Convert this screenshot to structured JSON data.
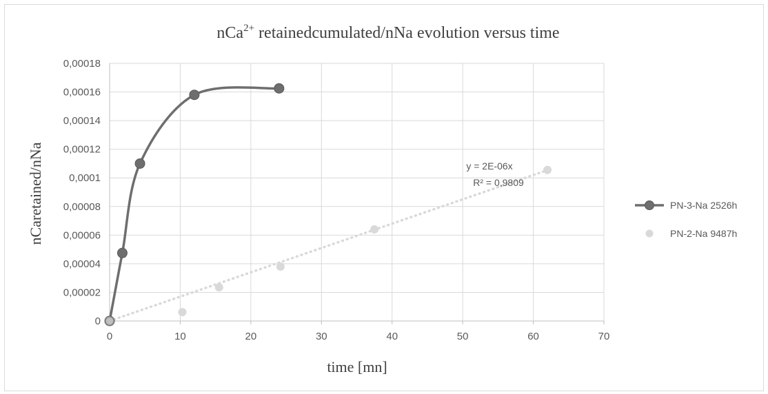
{
  "chart_data": {
    "type": "scatter",
    "title": {
      "pre": "nCa",
      "sup": "2+",
      "post": " retainedcumulated/nNa  evolution  versus  time"
    },
    "xlabel": "time [mn]",
    "ylabel": "nCaretained/nNa",
    "xlim": [
      0,
      70
    ],
    "ylim": [
      0,
      0.00018
    ],
    "x_ticks": [
      0,
      10,
      20,
      30,
      40,
      50,
      60,
      70
    ],
    "x_tick_labels": [
      "0",
      "10",
      "20",
      "30",
      "40",
      "50",
      "60",
      "70"
    ],
    "y_ticks": [
      0,
      2e-05,
      4e-05,
      6e-05,
      8e-05,
      0.0001,
      0.00012,
      0.00014,
      0.00016,
      0.00018
    ],
    "y_tick_labels": [
      "0",
      "0,00002",
      "0,00004",
      "0,00006",
      "0,00008",
      "0,0001",
      "0,00012",
      "0,00014",
      "0,00016",
      "0,00018"
    ],
    "grid": {
      "horizontal": true,
      "vertical": true
    },
    "legend_position": "right",
    "series": [
      {
        "name": "PN-3-Na 2526h",
        "style": "smooth-line-markers",
        "color": "#6e6e6e",
        "x": [
          0,
          1.8,
          4.3,
          12,
          24
        ],
        "y": [
          0,
          4.75e-05,
          0.00011,
          0.000158,
          0.0001625
        ]
      },
      {
        "name": "PN-2-Na 9487h",
        "style": "markers",
        "color": "#d9d9d9",
        "x": [
          0,
          10.3,
          15.5,
          24.2,
          37.5,
          62
        ],
        "y": [
          0,
          6.2e-06,
          2.35e-05,
          3.8e-05,
          6.4e-05,
          0.0001055
        ]
      }
    ],
    "trendline": {
      "series": "PN-2-Na 9487h",
      "slope": 1.7e-06,
      "x_range": [
        0,
        62
      ],
      "color": "#d9d9d9",
      "equation": "y = 2E-06x",
      "r_squared": "R² = 0,9809"
    }
  }
}
